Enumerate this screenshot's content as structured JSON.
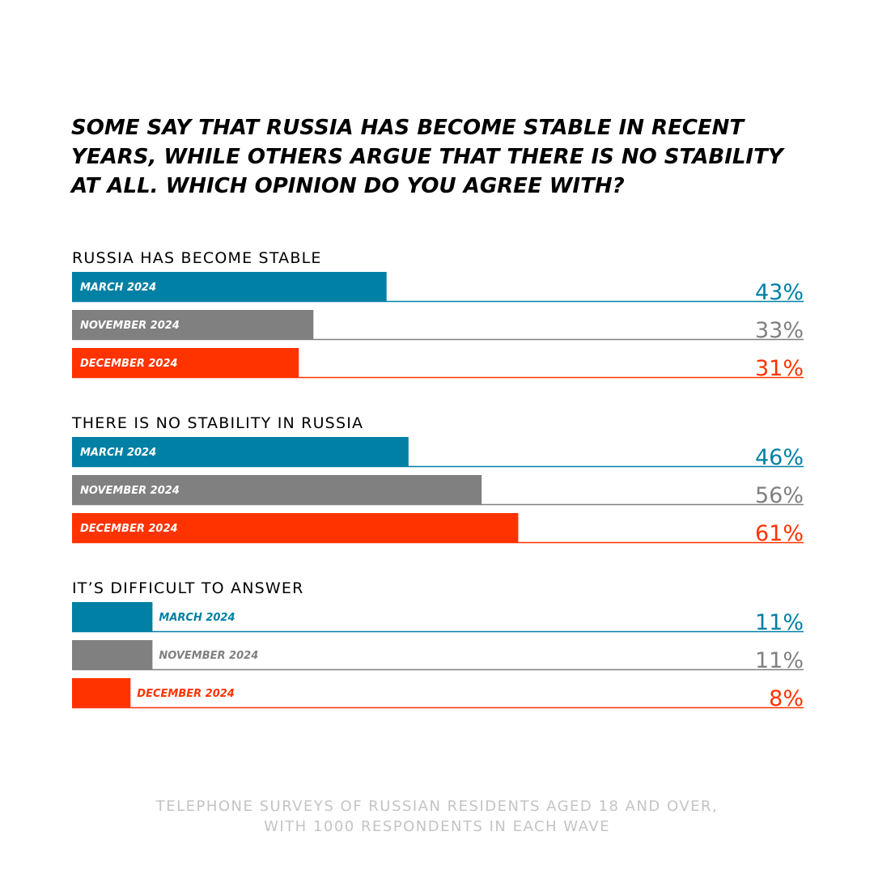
{
  "title": "SOME SAY THAT RUSSIA HAS BECOME STABLE IN RECENT YEARS, WHILE OTHERS ARGUE THAT THERE IS NO STABILITY AT ALL. WHICH OPINION DO YOU AGREE WITH?",
  "footer": {
    "line1": "TELEPHONE SURVEYS OF RUSSIAN RESIDENTS AGED 18 AND OVER,",
    "line2": "WITH 1000 RESPONDENTS IN EACH WAVE"
  },
  "colors": {
    "march": "#0080a4",
    "november": "#808080",
    "december": "#ff3300"
  },
  "chart_data": {
    "type": "bar",
    "orientation": "horizontal",
    "groups": [
      {
        "label": "RUSSIA HAS BECOME STABLE",
        "bars": [
          {
            "name": "MARCH 2024",
            "value": 43,
            "label": "43%",
            "color": "#0080a4"
          },
          {
            "name": "NOVEMBER 2024",
            "value": 33,
            "label": "33%",
            "color": "#808080"
          },
          {
            "name": "DECEMBER 2024",
            "value": 31,
            "label": "31%",
            "color": "#ff3300"
          }
        ]
      },
      {
        "label": "THERE IS NO STABILITY IN RUSSIA",
        "bars": [
          {
            "name": "MARCH 2024",
            "value": 46,
            "label": "46%",
            "color": "#0080a4"
          },
          {
            "name": "NOVEMBER 2024",
            "value": 56,
            "label": "56%",
            "color": "#808080"
          },
          {
            "name": "DECEMBER 2024",
            "value": 61,
            "label": "61%",
            "color": "#ff3300"
          }
        ]
      },
      {
        "label": "IT’S DIFFICULT TO ANSWER",
        "bars": [
          {
            "name": "MARCH 2024",
            "value": 11,
            "label": "11%",
            "color": "#0080a4"
          },
          {
            "name": "NOVEMBER 2024",
            "value": 11,
            "label": "11%",
            "color": "#808080"
          },
          {
            "name": "DECEMBER 2024",
            "value": 8,
            "label": "8%",
            "color": "#ff3300"
          }
        ]
      }
    ],
    "xlim": [
      0,
      100
    ],
    "grid": false,
    "legend": "none"
  }
}
